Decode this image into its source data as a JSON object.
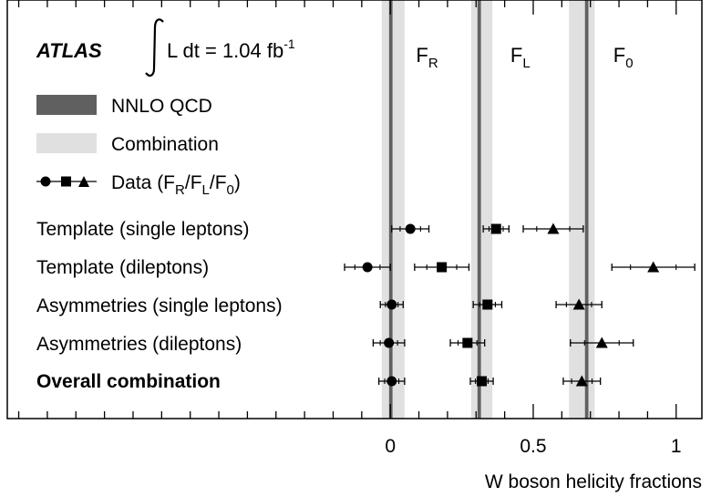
{
  "chart_data": {
    "type": "scatter",
    "experiment": "ATLAS",
    "luminosity": {
      "prefix": "L dt = 1.04 fb",
      "exponent": "-1"
    },
    "xlabel": "W boson helicity fractions",
    "xlim": [
      -1.34,
      1.09
    ],
    "x_ticks": [
      {
        "value": 0,
        "label": "0"
      },
      {
        "value": 0.5,
        "label": "0.5"
      },
      {
        "value": 1,
        "label": "1"
      }
    ],
    "column_labels": [
      {
        "base": "F",
        "sub": "R",
        "x": 0.09
      },
      {
        "base": "F",
        "sub": "L",
        "x": 0.42
      },
      {
        "base": "F",
        "sub": "0",
        "x": 0.78
      }
    ],
    "nnlo_qcd": {
      "values": [
        0.0017,
        0.311,
        0.687
      ],
      "band_half_width": 0.006,
      "color": "#606060"
    },
    "combination_band": {
      "centers": [
        0.01,
        0.32,
        0.67
      ],
      "half_widths": [
        0.04,
        0.037,
        0.045
      ],
      "color": "#e0e0e0"
    },
    "legend": {
      "nnlo_label": "NNLO QCD",
      "combination_label": "Combination",
      "data_prefix": "Data (F",
      "data_sub_r": "R",
      "data_sub_l": "L",
      "data_sub_0": "0"
    },
    "markers": [
      "circle",
      "square",
      "triangle"
    ],
    "measurements": [
      {
        "label": "Template (single leptons)",
        "bold": false,
        "FR": {
          "value": 0.07,
          "err": 0.065
        },
        "FL": {
          "value": 0.37,
          "err": 0.045
        },
        "F0": {
          "value": 0.57,
          "err": 0.105
        }
      },
      {
        "label": "Template (dileptons)",
        "bold": false,
        "FR": {
          "value": -0.08,
          "err": 0.08
        },
        "FL": {
          "value": 0.18,
          "err": 0.095
        },
        "F0": {
          "value": 0.92,
          "err": 0.145
        }
      },
      {
        "label": "Asymmetries (single leptons)",
        "bold": false,
        "FR": {
          "value": 0.005,
          "err": 0.04
        },
        "FL": {
          "value": 0.34,
          "err": 0.05
        },
        "F0": {
          "value": 0.66,
          "err": 0.08
        }
      },
      {
        "label": "Asymmetries (dileptons)",
        "bold": false,
        "FR": {
          "value": -0.005,
          "err": 0.055
        },
        "FL": {
          "value": 0.27,
          "err": 0.06
        },
        "F0": {
          "value": 0.74,
          "err": 0.11
        }
      },
      {
        "label": "Overall combination",
        "bold": true,
        "FR": {
          "value": 0.005,
          "err": 0.045
        },
        "FL": {
          "value": 0.32,
          "err": 0.04
        },
        "F0": {
          "value": 0.67,
          "err": 0.065
        }
      }
    ]
  }
}
